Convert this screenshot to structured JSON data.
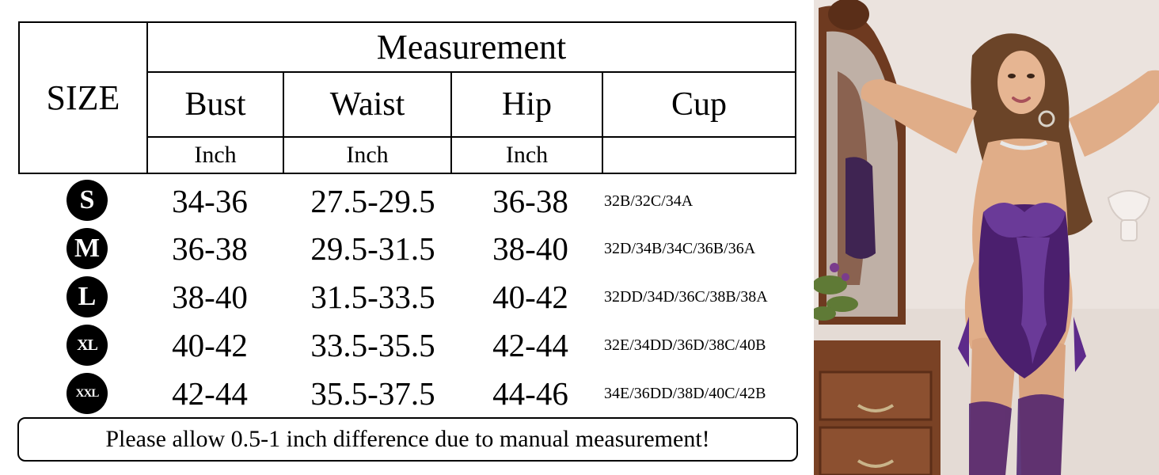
{
  "table": {
    "size_header": "SIZE",
    "measurement_header": "Measurement",
    "columns": [
      {
        "label": "Bust",
        "unit": "Inch"
      },
      {
        "label": "Waist",
        "unit": "Inch"
      },
      {
        "label": "Hip",
        "unit": "Inch"
      },
      {
        "label": "Cup",
        "unit": ""
      }
    ],
    "rows": [
      {
        "size": "S",
        "bust": "34-36",
        "waist": "27.5-29.5",
        "hip": "36-38",
        "cup": "32B/32C/34A"
      },
      {
        "size": "M",
        "bust": "36-38",
        "waist": "29.5-31.5",
        "hip": "38-40",
        "cup": "32D/34B/34C/36B/36A"
      },
      {
        "size": "L",
        "bust": "38-40",
        "waist": "31.5-33.5",
        "hip": "40-42",
        "cup": "32DD/34D/36C/38B/38A"
      },
      {
        "size": "XL",
        "bust": "40-42",
        "waist": "33.5-35.5",
        "hip": "42-44",
        "cup": "32E/34DD/36D/38C/40B"
      },
      {
        "size": "XXL",
        "bust": "42-44",
        "waist": "35.5-37.5",
        "hip": "44-46",
        "cup": "34E/36DD/38D/40C/42B"
      }
    ]
  },
  "note": "Please allow 0.5-1 inch difference due to manual measurement!",
  "colors": {
    "garment": "#4b1f6e",
    "lace": "#6a3a98",
    "wall": "#ebe3de",
    "furniture": "#7a4225",
    "skin": "#e0ad88",
    "hair": "#6b4428"
  }
}
